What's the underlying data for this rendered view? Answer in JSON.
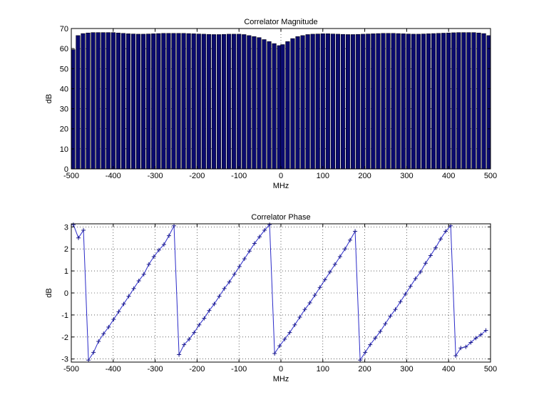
{
  "chart_data": [
    {
      "type": "bar",
      "title": "Correlator Magnitude",
      "xlabel": "MHz",
      "ylabel": "dB",
      "xlim": [
        -500,
        500
      ],
      "ylim": [
        0,
        70
      ],
      "grid": true,
      "xticks": [
        -500,
        -400,
        -300,
        -200,
        -100,
        0,
        100,
        200,
        300,
        400,
        500
      ],
      "yticks": [
        0,
        10,
        20,
        30,
        40,
        50,
        60,
        70
      ],
      "colors": {
        "bar": "#0a0a6e",
        "edge": "#000000"
      },
      "series": [
        {
          "x": [
            -496,
            -484,
            -472,
            -460,
            -448,
            -436,
            -424,
            -412,
            -400,
            -388,
            -376,
            -364,
            -352,
            -340,
            -328,
            -316,
            -304,
            -292,
            -280,
            -268,
            -256,
            -244,
            -232,
            -220,
            -208,
            -196,
            -184,
            -172,
            -160,
            -148,
            -136,
            -124,
            -112,
            -100,
            -88,
            -76,
            -64,
            -52,
            -40,
            -28,
            -16,
            -4,
            4,
            16,
            28,
            40,
            52,
            64,
            76,
            88,
            100,
            112,
            124,
            136,
            148,
            160,
            172,
            184,
            196,
            208,
            220,
            232,
            244,
            256,
            268,
            280,
            292,
            304,
            316,
            328,
            340,
            352,
            364,
            376,
            388,
            400,
            412,
            424,
            436,
            448,
            460,
            472,
            484,
            496
          ],
          "values": [
            59.5,
            66.5,
            67.5,
            67.8,
            68,
            68,
            68,
            68,
            68,
            67.8,
            67.6,
            67.4,
            67.3,
            67.2,
            67.2,
            67.3,
            67.4,
            67.5,
            67.6,
            67.6,
            67.6,
            67.6,
            67.6,
            67.5,
            67.4,
            67.3,
            67.2,
            67.1,
            67,
            67,
            67.1,
            67.2,
            67.2,
            67.2,
            67,
            66.5,
            66,
            65.5,
            64.5,
            63.5,
            62.5,
            61.5,
            62,
            63.5,
            65,
            66,
            66.5,
            67,
            67.2,
            67.3,
            67.4,
            67.4,
            67.3,
            67.2,
            67.1,
            67,
            67,
            67.1,
            67.2,
            67.3,
            67.4,
            67.5,
            67.6,
            67.6,
            67.6,
            67.5,
            67.4,
            67.3,
            67.2,
            67.2,
            67.3,
            67.4,
            67.5,
            67.6,
            67.7,
            67.8,
            67.9,
            68,
            68,
            68,
            68,
            67.8,
            67.5,
            66.5
          ]
        }
      ]
    },
    {
      "type": "line",
      "title": "Correlator Phase",
      "xlabel": "MHz",
      "ylabel": "dB",
      "xlim": [
        -500,
        500
      ],
      "ylim": [
        -3.14,
        3.14
      ],
      "grid": true,
      "xticks": [
        -500,
        -400,
        -300,
        -200,
        -100,
        0,
        100,
        200,
        300,
        400,
        500
      ],
      "yticks": [
        -3,
        -2,
        -1,
        0,
        1,
        2,
        3
      ],
      "colors": {
        "line": "#2a2ac8",
        "marker": "#1a1a8a"
      },
      "marker": "+",
      "series": [
        {
          "x": [
            -495,
            -483,
            -471,
            -459,
            -447,
            -435,
            -423,
            -411,
            -399,
            -387,
            -375,
            -363,
            -351,
            -339,
            -327,
            -315,
            -303,
            -291,
            -279,
            -267,
            -255,
            -243,
            -231,
            -219,
            -207,
            -195,
            -183,
            -171,
            -159,
            -147,
            -135,
            -123,
            -111,
            -99,
            -87,
            -75,
            -63,
            -51,
            -39,
            -27,
            -15,
            -3,
            9,
            21,
            33,
            45,
            57,
            69,
            81,
            93,
            105,
            117,
            129,
            141,
            153,
            165,
            177,
            189,
            201,
            213,
            225,
            237,
            249,
            261,
            273,
            285,
            297,
            309,
            321,
            333,
            345,
            357,
            369,
            381,
            393,
            405,
            417,
            429,
            441,
            453,
            465,
            477,
            489
          ],
          "y": [
            3.1,
            2.5,
            2.85,
            -3.05,
            -2.7,
            -2.2,
            -1.85,
            -1.55,
            -1.2,
            -0.85,
            -0.5,
            -0.15,
            0.2,
            0.55,
            0.85,
            1.3,
            1.65,
            1.95,
            2.2,
            2.6,
            3.05,
            -2.8,
            -2.35,
            -2.1,
            -1.8,
            -1.45,
            -1.15,
            -0.8,
            -0.5,
            -0.15,
            0.2,
            0.5,
            0.85,
            1.2,
            1.55,
            1.9,
            2.25,
            2.55,
            2.85,
            3.1,
            -2.75,
            -2.4,
            -2.1,
            -1.8,
            -1.45,
            -1.1,
            -0.75,
            -0.45,
            -0.1,
            0.25,
            0.6,
            0.95,
            1.3,
            1.65,
            2.0,
            2.4,
            2.8,
            -3.05,
            -2.7,
            -2.35,
            -2.05,
            -1.75,
            -1.4,
            -1.05,
            -0.75,
            -0.4,
            -0.05,
            0.3,
            0.65,
            0.95,
            1.35,
            1.7,
            2.05,
            2.45,
            2.8,
            3.05,
            -2.85,
            -2.5,
            -2.45,
            -2.25,
            -2.05,
            -1.9,
            -1.7
          ]
        }
      ]
    }
  ]
}
